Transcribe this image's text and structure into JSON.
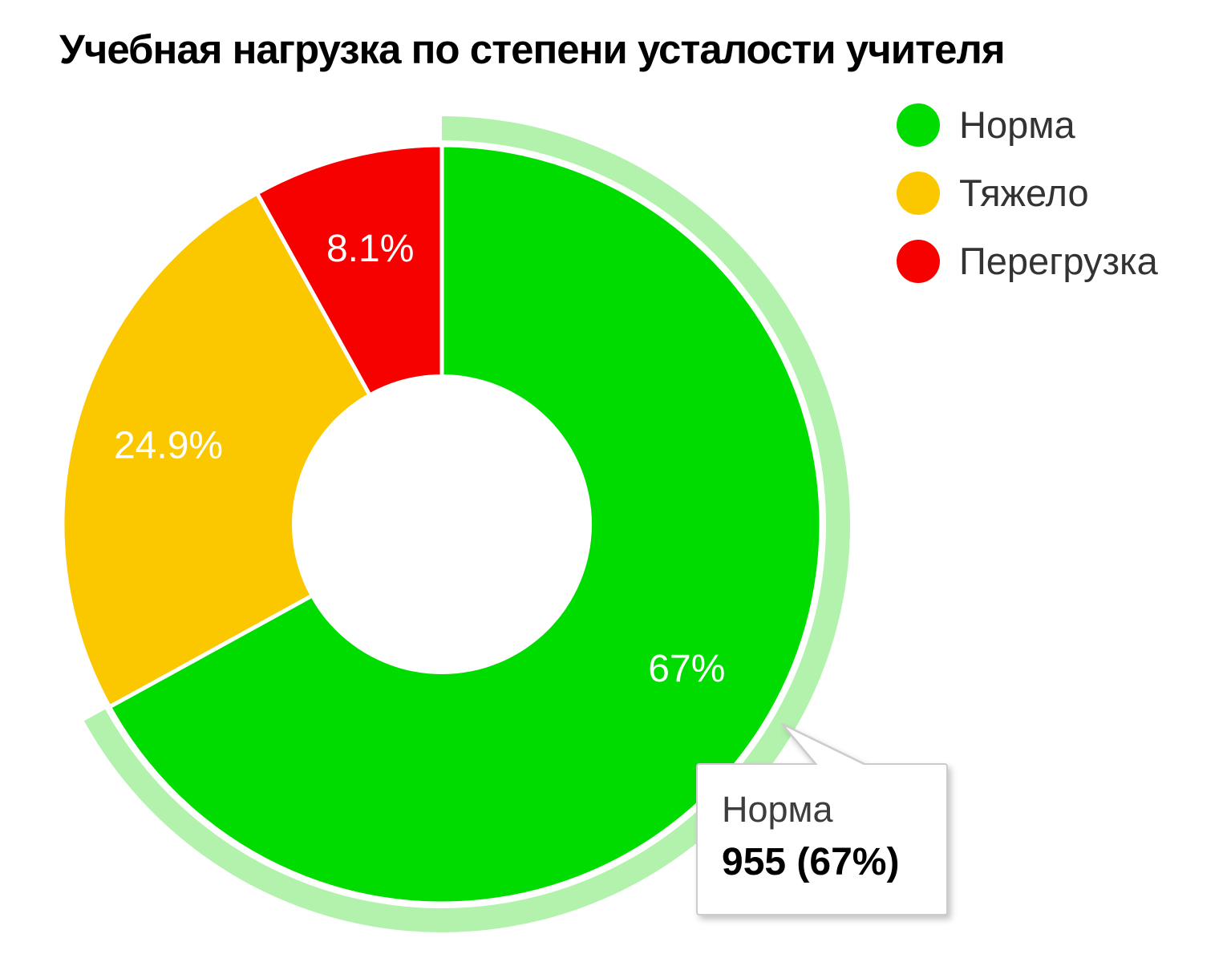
{
  "title": "Учебная нагрузка по степени усталости учителя",
  "legend": {
    "position": "right-top",
    "items": [
      {
        "label": "Норма",
        "color": "#00DC00"
      },
      {
        "label": "Тяжело",
        "color": "#FBC800"
      },
      {
        "label": "Перегрузка",
        "color": "#F60000"
      }
    ]
  },
  "chart_data": {
    "type": "pie",
    "title": "Учебная нагрузка по степени усталости учителя",
    "categories": [
      "Норма",
      "Тяжело",
      "Перегрузка"
    ],
    "values_percent": [
      67,
      24.9,
      8.1
    ],
    "slices": [
      {
        "id": "norma",
        "label": "Норма",
        "percent": 67,
        "count": 955,
        "display_label": "67%",
        "color": "#00DC00",
        "highlighted": true
      },
      {
        "id": "tyazhelo",
        "label": "Тяжело",
        "percent": 24.9,
        "display_label": "24.9%",
        "color": "#FBC800",
        "highlighted": false
      },
      {
        "id": "peregruzka",
        "label": "Перегрузка",
        "percent": 8.1,
        "display_label": "8.1%",
        "color": "#F60000",
        "highlighted": false
      }
    ],
    "start_angle": "top",
    "direction": "clockwise",
    "donut_hole_ratio": 0.39,
    "slice_border_color": "#FFFFFF",
    "highlight_ring_color": "#B2F2AC",
    "label_color": "#FFFFFF",
    "legend_position": "right-top",
    "grid": false
  },
  "tooltip": {
    "target_slice": "Норма",
    "line1": "Норма",
    "line2": "955 (67%)"
  }
}
